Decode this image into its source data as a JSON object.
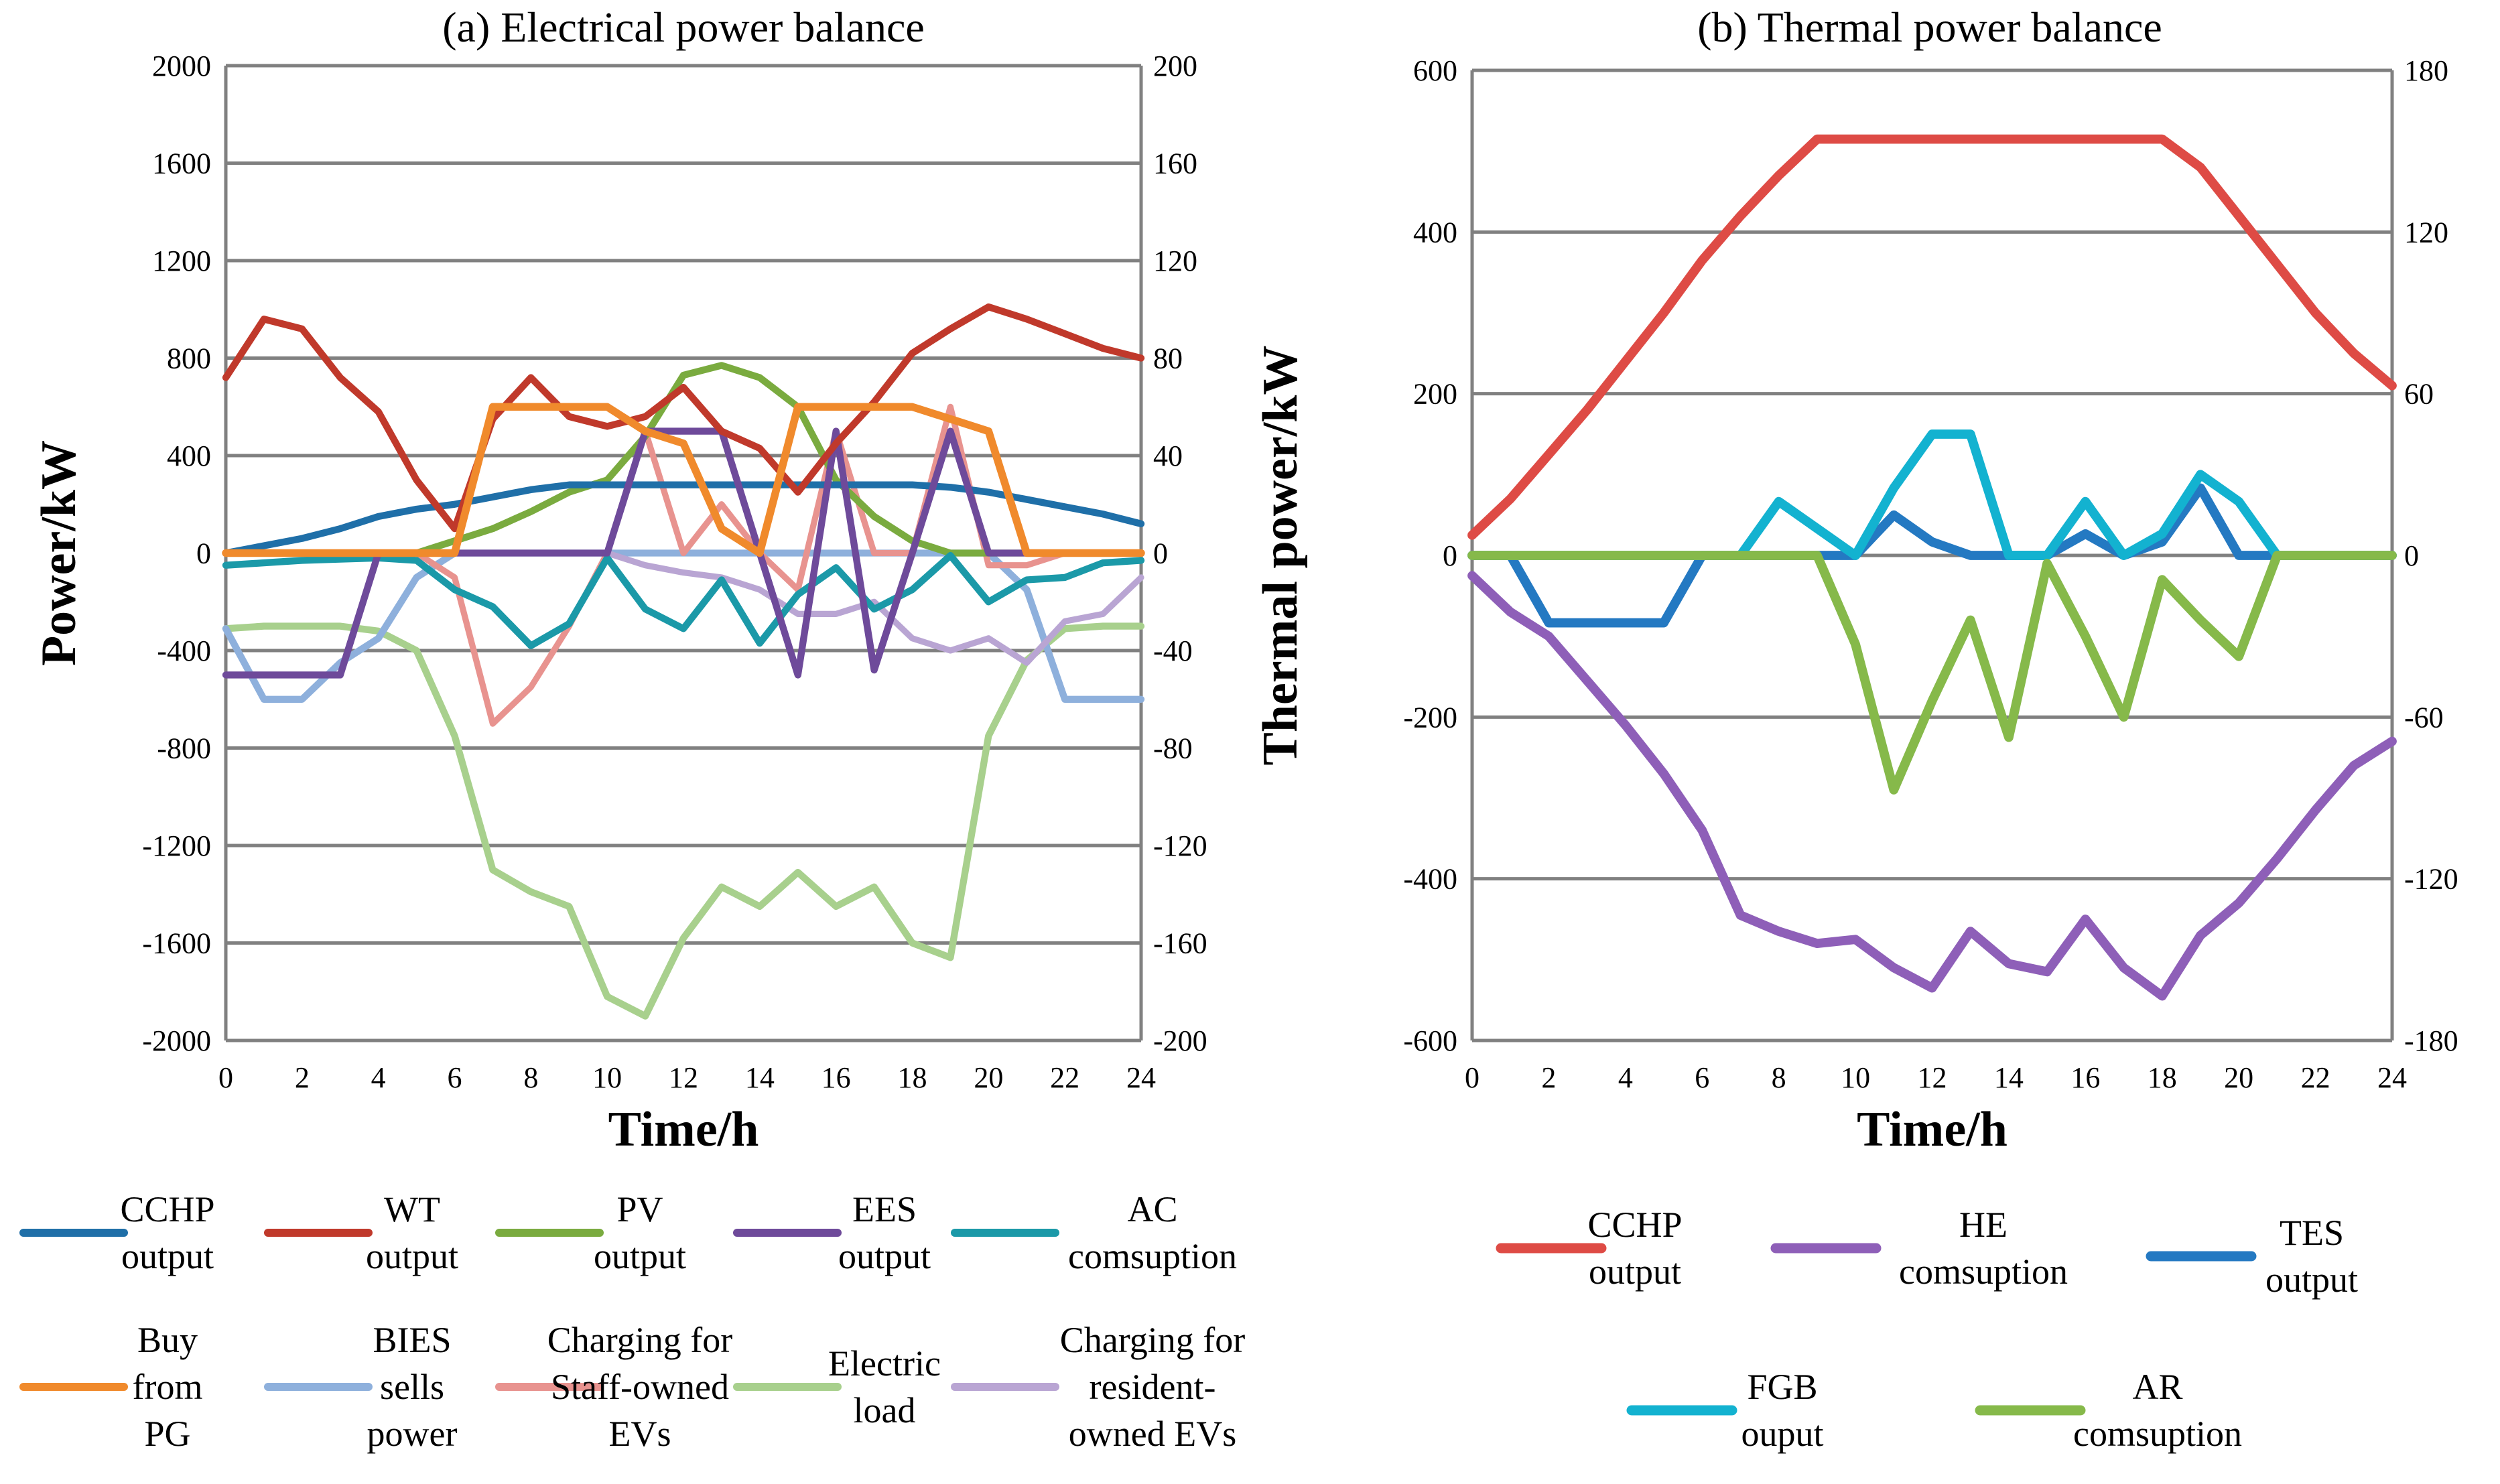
{
  "figure": {
    "colors": {
      "CCHP": "#1f6fa8",
      "WT": "#c0392b",
      "PV": "#7aab3f",
      "EES": "#6e4a9a",
      "AC": "#1b99a8",
      "BuyPG": "#f08a2c",
      "BIES": "#8eb0dc",
      "Staff": "#e8938f",
      "Load": "#a8d08d",
      "Resident": "#b9a5d3",
      "CCHPb": "#de4b45",
      "HE": "#8e5fb8",
      "TES": "#2479c2",
      "FGB": "#13b2d0",
      "AR": "#86b94a",
      "grid": "#808080"
    }
  },
  "chart_data": [
    {
      "id": "a",
      "type": "line",
      "title": "(a) Electrical power balance",
      "xlabel": "Time/h",
      "ylabel": "Power/kW",
      "xlim": [
        0,
        24
      ],
      "ylim": [
        -2000,
        2000
      ],
      "y2lim": [
        -200,
        200
      ],
      "xticks": [
        "0",
        "2",
        "4",
        "6",
        "8",
        "10",
        "12",
        "14",
        "16",
        "18",
        "20",
        "22",
        "24"
      ],
      "yticks": [
        "2000",
        "1600",
        "1200",
        "800",
        "400",
        "0",
        "-400",
        "-800",
        "-1200",
        "-1600",
        "-2000"
      ],
      "y2ticks": [
        "200",
        "160",
        "120",
        "80",
        "40",
        "0",
        "-40",
        "-80",
        "-120",
        "-160",
        "-200"
      ],
      "grid": true,
      "legend": [
        {
          "key": "CCHP",
          "label": [
            "CCHP",
            "output"
          ]
        },
        {
          "key": "WT",
          "label": [
            "WT",
            "output"
          ]
        },
        {
          "key": "PV",
          "label": [
            "PV",
            "output"
          ]
        },
        {
          "key": "EES",
          "label": [
            "EES",
            "output"
          ]
        },
        {
          "key": "AC",
          "label": [
            "AC",
            "comsuption"
          ]
        },
        {
          "key": "BuyPG",
          "label": [
            "Buy",
            "from",
            "PG"
          ]
        },
        {
          "key": "BIES",
          "label": [
            "BIES",
            "sells",
            "power"
          ]
        },
        {
          "key": "Staff",
          "label": [
            "Charging for",
            "Staff-owned",
            "EVs"
          ]
        },
        {
          "key": "Load",
          "label": [
            "Electric",
            "load"
          ]
        },
        {
          "key": "Resident",
          "label": [
            "Charging for",
            "resident-",
            "owned EVs"
          ]
        }
      ],
      "series": [
        {
          "key": "Load",
          "axis": "left",
          "width": 9,
          "x": [
            0,
            1,
            2,
            3,
            4,
            5,
            6,
            7,
            8,
            9,
            10,
            11,
            12,
            13,
            14,
            15,
            16,
            17,
            18,
            19,
            20,
            21,
            22,
            23,
            24
          ],
          "values": [
            -310,
            -300,
            -300,
            -300,
            -320,
            -400,
            -750,
            -1300,
            -1390,
            -1450,
            -1820,
            -1900,
            -1580,
            -1370,
            -1450,
            -1310,
            -1450,
            -1370,
            -1600,
            -1660,
            -750,
            -440,
            -310,
            -300,
            -300
          ]
        },
        {
          "key": "BIES",
          "axis": "left",
          "width": 9,
          "x": [
            0,
            1,
            2,
            3,
            4,
            5,
            6,
            7,
            8,
            9,
            10,
            11,
            12,
            13,
            14,
            15,
            16,
            17,
            18,
            19,
            20,
            21,
            22,
            23,
            24
          ],
          "values": [
            -310,
            -600,
            -600,
            -450,
            -350,
            -100,
            0,
            0,
            0,
            0,
            0,
            0,
            0,
            0,
            0,
            0,
            0,
            0,
            0,
            0,
            0,
            -150,
            -600,
            -600,
            -600
          ]
        },
        {
          "key": "Resident",
          "axis": "right",
          "width": 8,
          "x": [
            0,
            1,
            2,
            3,
            4,
            5,
            6,
            7,
            8,
            9,
            10,
            11,
            12,
            13,
            14,
            15,
            16,
            17,
            18,
            19,
            20,
            21,
            22,
            23,
            24
          ],
          "values": [
            0,
            0,
            0,
            0,
            0,
            0,
            0,
            0,
            0,
            0,
            0,
            -5,
            -8,
            -10,
            -15,
            -25,
            -25,
            -20,
            -35,
            -40,
            -35,
            -45,
            -28,
            -25,
            -10
          ]
        },
        {
          "key": "Staff",
          "axis": "right",
          "width": 8,
          "x": [
            0,
            1,
            2,
            3,
            4,
            5,
            6,
            7,
            8,
            9,
            10,
            11,
            12,
            13,
            14,
            15,
            16,
            17,
            18,
            19,
            20,
            21,
            22,
            23,
            24
          ],
          "values": [
            0,
            0,
            0,
            0,
            0,
            0,
            -10,
            -70,
            -55,
            -30,
            0,
            50,
            0,
            20,
            0,
            -15,
            50,
            0,
            0,
            60,
            -5,
            -5,
            0,
            0,
            0
          ]
        },
        {
          "key": "PV",
          "axis": "left",
          "width": 9,
          "x": [
            0,
            1,
            2,
            3,
            4,
            5,
            6,
            7,
            8,
            9,
            10,
            11,
            12,
            13,
            14,
            15,
            16,
            17,
            18,
            19,
            20,
            21,
            22,
            23,
            24
          ],
          "values": [
            0,
            0,
            0,
            0,
            0,
            0,
            50,
            100,
            170,
            250,
            300,
            480,
            730,
            770,
            720,
            600,
            300,
            150,
            50,
            0,
            0,
            0,
            0,
            0,
            0
          ]
        },
        {
          "key": "AC",
          "axis": "left",
          "width": 9,
          "x": [
            0,
            1,
            2,
            3,
            4,
            5,
            6,
            7,
            8,
            9,
            10,
            11,
            12,
            13,
            14,
            15,
            16,
            17,
            18,
            19,
            20,
            21,
            22,
            23,
            24
          ],
          "values": [
            -50,
            -40,
            -30,
            -25,
            -20,
            -30,
            -150,
            -220,
            -380,
            -290,
            -20,
            -230,
            -310,
            -110,
            -370,
            -170,
            -60,
            -230,
            -150,
            -10,
            -200,
            -110,
            -100,
            -40,
            -30
          ]
        },
        {
          "key": "CCHP",
          "axis": "left",
          "width": 9,
          "x": [
            0,
            1,
            2,
            3,
            4,
            5,
            6,
            7,
            8,
            9,
            10,
            11,
            12,
            13,
            14,
            15,
            16,
            17,
            18,
            19,
            20,
            21,
            22,
            23,
            24
          ],
          "values": [
            0,
            30,
            60,
            100,
            150,
            180,
            200,
            230,
            260,
            280,
            280,
            280,
            280,
            280,
            280,
            280,
            280,
            280,
            280,
            270,
            250,
            220,
            190,
            160,
            120
          ]
        },
        {
          "key": "EES",
          "axis": "left",
          "width": 9,
          "x": [
            0,
            1,
            2,
            3,
            4,
            5,
            6,
            7,
            8,
            9,
            10,
            11,
            12,
            13,
            14,
            15,
            16,
            17,
            18,
            19,
            20,
            21,
            22,
            23,
            24
          ],
          "values": [
            -500,
            -500,
            -500,
            -500,
            0,
            0,
            0,
            0,
            0,
            0,
            0,
            500,
            500,
            500,
            0,
            -500,
            500,
            -480,
            0,
            500,
            0,
            0,
            0,
            0,
            0
          ]
        },
        {
          "key": "WT",
          "axis": "left",
          "width": 9,
          "x": [
            0,
            1,
            2,
            3,
            4,
            5,
            6,
            7,
            8,
            9,
            10,
            11,
            12,
            13,
            14,
            15,
            16,
            17,
            18,
            19,
            20,
            21,
            22,
            23,
            24
          ],
          "values": [
            720,
            960,
            920,
            720,
            580,
            300,
            100,
            550,
            720,
            560,
            520,
            560,
            680,
            500,
            430,
            250,
            450,
            620,
            820,
            920,
            1010,
            960,
            900,
            840,
            800
          ]
        },
        {
          "key": "BuyPG",
          "axis": "right",
          "width": 10,
          "x": [
            0,
            1,
            2,
            3,
            4,
            5,
            6,
            7,
            8,
            9,
            10,
            11,
            12,
            13,
            14,
            15,
            16,
            17,
            18,
            19,
            20,
            21,
            22,
            23,
            24
          ],
          "values": [
            0,
            0,
            0,
            0,
            0,
            0,
            0,
            60,
            60,
            60,
            60,
            50,
            45,
            10,
            0,
            60,
            60,
            60,
            60,
            55,
            50,
            0,
            0,
            0,
            0
          ]
        }
      ]
    },
    {
      "id": "b",
      "type": "line",
      "title": "(b) Thermal power balance",
      "xlabel": "Time/h",
      "ylabel": "Thermal power/kW",
      "xlim": [
        0,
        24
      ],
      "ylim": [
        -600,
        600
      ],
      "y2lim": [
        -180,
        180
      ],
      "xticks": [
        "0",
        "2",
        "4",
        "6",
        "8",
        "10",
        "12",
        "14",
        "16",
        "18",
        "20",
        "22",
        "24"
      ],
      "yticks": [
        "600",
        "400",
        "200",
        "0",
        "-200",
        "-400",
        "-600"
      ],
      "y2ticks": [
        "180",
        "120",
        "60",
        "0",
        "-60",
        "-120",
        "-180"
      ],
      "grid": true,
      "legend": [
        {
          "key": "CCHPb",
          "label": [
            "CCHP",
            "output"
          ]
        },
        {
          "key": "HE",
          "label": [
            "HE",
            "comsuption"
          ]
        },
        {
          "key": "TES",
          "label": [
            "TES",
            "output"
          ]
        },
        {
          "key": "FGB",
          "label": [
            "FGB",
            "ouput"
          ]
        },
        {
          "key": "AR",
          "label": [
            "AR",
            "comsuption"
          ]
        }
      ],
      "series": [
        {
          "key": "CCHPb",
          "axis": "left",
          "width": 12,
          "x": [
            0,
            1,
            2,
            3,
            4,
            5,
            6,
            7,
            8,
            9,
            10,
            11,
            12,
            13,
            14,
            15,
            16,
            17,
            18,
            19,
            20,
            21,
            22,
            23,
            24
          ],
          "values": [
            25,
            70,
            125,
            180,
            240,
            300,
            365,
            420,
            470,
            515,
            515,
            515,
            515,
            515,
            515,
            515,
            515,
            515,
            515,
            480,
            420,
            360,
            300,
            250,
            210
          ]
        },
        {
          "key": "HE",
          "axis": "left",
          "width": 12,
          "x": [
            0,
            1,
            2,
            3,
            4,
            5,
            6,
            7,
            8,
            9,
            10,
            11,
            12,
            13,
            14,
            15,
            16,
            17,
            18,
            19,
            20,
            21,
            22,
            23,
            24
          ],
          "values": [
            -25,
            -70,
            -100,
            -155,
            -210,
            -270,
            -340,
            -445,
            -465,
            -480,
            -475,
            -510,
            -535,
            -465,
            -505,
            -515,
            -450,
            -510,
            -545,
            -470,
            -430,
            -375,
            -315,
            -260,
            -230
          ]
        },
        {
          "key": "TES",
          "axis": "right",
          "width": 12,
          "x": [
            0,
            1,
            2,
            3,
            4,
            5,
            6,
            7,
            8,
            9,
            10,
            11,
            12,
            13,
            14,
            15,
            16,
            17,
            18,
            19,
            20,
            21,
            22,
            23,
            24
          ],
          "values": [
            0,
            0,
            -25,
            -25,
            -25,
            -25,
            0,
            0,
            0,
            0,
            0,
            15,
            5,
            0,
            0,
            0,
            8,
            0,
            5,
            25,
            0,
            0,
            0,
            0,
            0
          ]
        },
        {
          "key": "FGB",
          "axis": "right",
          "width": 12,
          "x": [
            0,
            1,
            2,
            3,
            4,
            5,
            6,
            7,
            8,
            9,
            10,
            11,
            12,
            13,
            14,
            15,
            16,
            17,
            18,
            19,
            20,
            21,
            22,
            23,
            24
          ],
          "values": [
            0,
            0,
            0,
            0,
            0,
            0,
            0,
            0,
            20,
            10,
            0,
            25,
            45,
            45,
            0,
            0,
            20,
            0,
            8,
            30,
            20,
            0,
            0,
            0,
            0
          ]
        },
        {
          "key": "AR",
          "axis": "left",
          "width": 12,
          "x": [
            0,
            1,
            2,
            3,
            4,
            5,
            6,
            7,
            8,
            9,
            10,
            11,
            12,
            13,
            14,
            15,
            16,
            17,
            18,
            19,
            20,
            21,
            22,
            23,
            24
          ],
          "values": [
            0,
            0,
            0,
            0,
            0,
            0,
            0,
            0,
            0,
            0,
            -110,
            -290,
            -180,
            -80,
            -225,
            -10,
            -100,
            -200,
            -30,
            -80,
            -125,
            0,
            0,
            0,
            0
          ]
        }
      ]
    }
  ]
}
